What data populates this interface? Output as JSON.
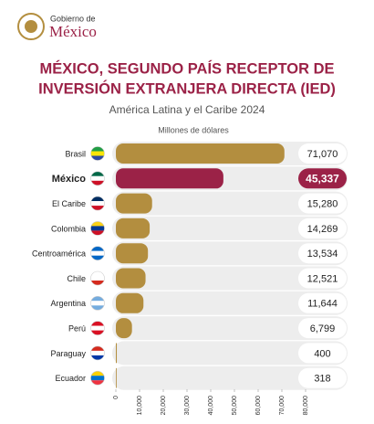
{
  "header": {
    "line1": "Gobierno de",
    "line2": "México"
  },
  "chart_data": {
    "type": "bar",
    "orientation": "horizontal",
    "title": [
      "MÉXICO, SEGUNDO PAÍS RECEPTOR DE",
      "INVERSIÓN EXTRANJERA DIRECTA (IED)"
    ],
    "subtitle": "América Latina y el Caribe 2024",
    "x_label": "Millones de dólares",
    "categories": [
      "Brasil",
      "México",
      "El Caribe",
      "Colombia",
      "Centroamérica",
      "Chile",
      "Argentina",
      "Perú",
      "Paraguay",
      "Ecuador"
    ],
    "values": [
      71070,
      45337,
      15280,
      14269,
      13534,
      12521,
      11644,
      6799,
      400,
      318
    ],
    "value_labels": [
      "71,070",
      "45,337",
      "15,280",
      "14,269",
      "13,534",
      "12,521",
      "11,644",
      "6,799",
      "400",
      "318"
    ],
    "colors": [
      "#b38e3f",
      "#9b2247",
      "#b38e3f",
      "#b38e3f",
      "#b38e3f",
      "#b38e3f",
      "#b38e3f",
      "#b38e3f",
      "#b38e3f",
      "#b38e3f"
    ],
    "xlim": [
      0,
      80000
    ],
    "xticks": [
      0,
      {
        "value": 10000,
        "label": "10,000"
      },
      {
        "value": 20000,
        "label": "20,000"
      },
      {
        "value": 30000,
        "label": "30,000"
      },
      {
        "value": 40000,
        "label": "40,000"
      },
      {
        "value": 50000,
        "label": "50,000"
      },
      {
        "value": 60000,
        "label": "60,000"
      },
      {
        "value": 70000,
        "label": "70,000"
      },
      {
        "value": 80000,
        "label": "80,000"
      }
    ]
  }
}
